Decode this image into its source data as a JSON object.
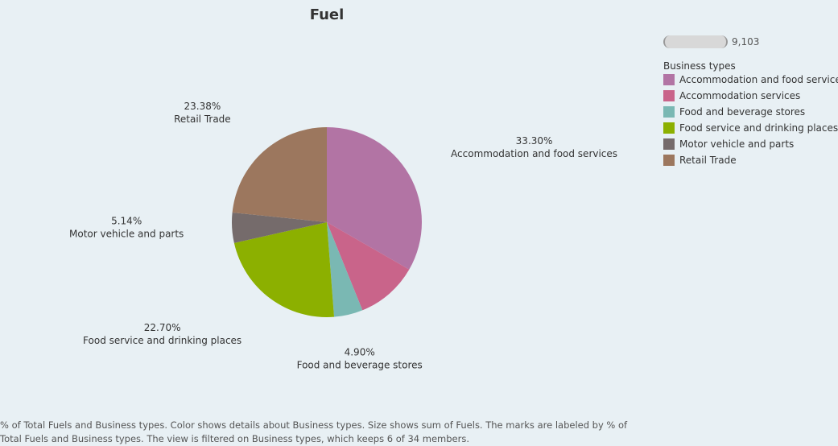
{
  "chart_data": {
    "type": "pie",
    "title": "Fuel",
    "slices": [
      {
        "name": "Accommodation and food services",
        "percent": 33.3,
        "label": "33.30%",
        "color": "#b274a4"
      },
      {
        "name": "Accommodation services",
        "percent": 10.58,
        "label": "",
        "color": "#c9648a"
      },
      {
        "name": "Food and beverage stores",
        "percent": 4.9,
        "label": "4.90%",
        "color": "#7ab8b3"
      },
      {
        "name": "Food service and drinking places",
        "percent": 22.7,
        "label": "22.70%",
        "color": "#8cb000"
      },
      {
        "name": "Motor vehicle and parts",
        "percent": 5.14,
        "label": "5.14%",
        "color": "#756b6b"
      },
      {
        "name": "Retail Trade",
        "percent": 23.38,
        "label": "23.38%",
        "color": "#9c775e"
      }
    ],
    "legend_position": "top-right"
  },
  "legend": {
    "size_value": "9,103",
    "title": "Business types"
  },
  "caption": "% of Total Fuels and Business types.  Color shows details about Business types.  Size shows sum of Fuels.  The marks are labeled by % of Total Fuels and Business types. The view is filtered on Business types, which keeps 6 of 34 members."
}
